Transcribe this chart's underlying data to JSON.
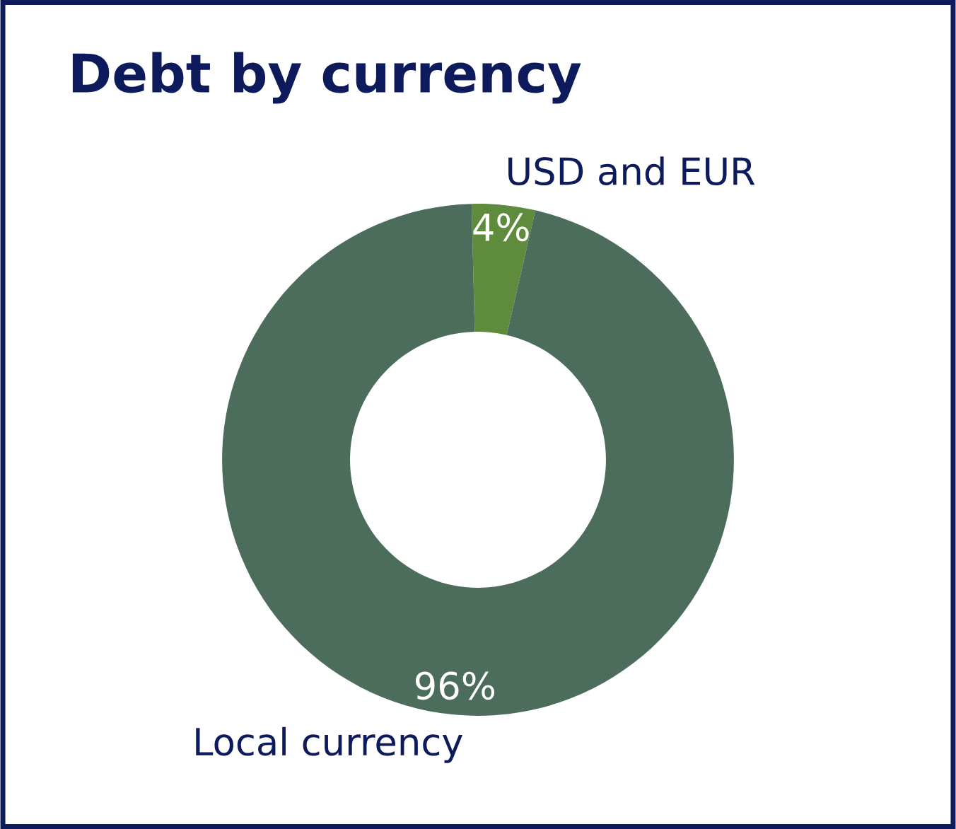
{
  "chart_data": {
    "type": "donut",
    "title": "Debt by currency",
    "categories": [
      "USD and EUR",
      "Local currency"
    ],
    "values": [
      4,
      96
    ],
    "colors": [
      "#5e8b3c",
      "#4c6d5b"
    ],
    "value_labels": [
      "4%",
      "96%"
    ]
  }
}
